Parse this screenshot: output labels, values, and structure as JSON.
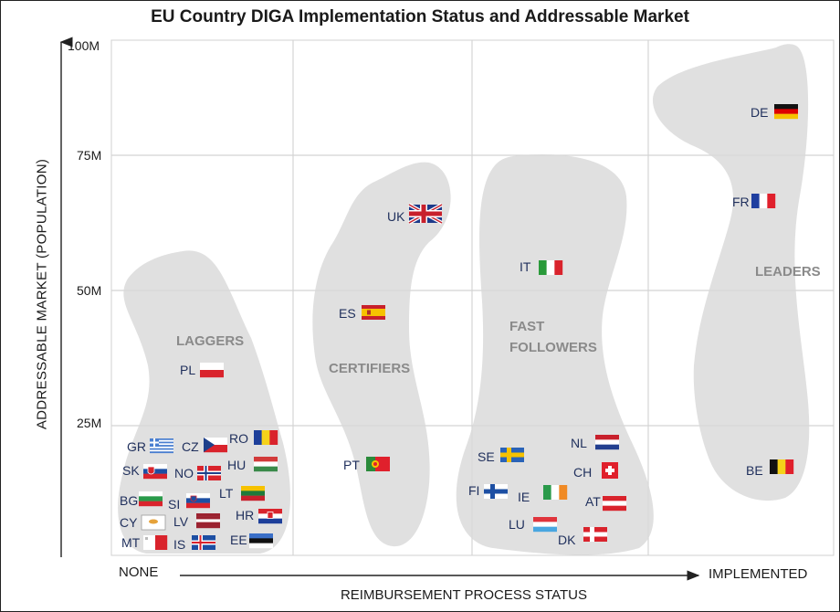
{
  "chart_data": {
    "type": "scatter",
    "title": "EU Country DIGA Implementation Status and Addressable Market",
    "xlabel": "REIMBURSEMENT PROCESS STATUS",
    "ylabel": "ADDRESSABLE MARKET (POPULATION)",
    "x_axis_start_label": "NONE",
    "x_axis_end_label": "IMPLEMENTED",
    "y_ticks": [
      "25M",
      "50M",
      "75M",
      "100M"
    ],
    "ylim": [
      0,
      100
    ],
    "y_unit": "M",
    "grid": true,
    "groups": [
      {
        "name": "LAGGERS",
        "label": "LAGGERS"
      },
      {
        "name": "CERTIFIERS",
        "label": "CERTIFIERS"
      },
      {
        "name": "FAST FOLLOWERS",
        "label": "FAST\nFOLLOWERS"
      },
      {
        "name": "LEADERS",
        "label": "LEADERS"
      }
    ],
    "points": [
      {
        "code": "DE",
        "group": "LEADERS",
        "x": 4.8,
        "y": 83,
        "flag": "germany"
      },
      {
        "code": "FR",
        "group": "LEADERS",
        "x": 4.6,
        "y": 67,
        "flag": "france"
      },
      {
        "code": "BE",
        "group": "LEADERS",
        "x": 4.7,
        "y": 11.5,
        "flag": "belgium"
      },
      {
        "code": "IT",
        "group": "FAST FOLLOWERS",
        "x": 3.4,
        "y": 60,
        "flag": "italy"
      },
      {
        "code": "NL",
        "group": "FAST FOLLOWERS",
        "x": 3.75,
        "y": 17.5,
        "flag": "netherlands"
      },
      {
        "code": "SE",
        "group": "FAST FOLLOWERS",
        "x": 3.1,
        "y": 10.5,
        "flag": "sweden"
      },
      {
        "code": "CH",
        "group": "FAST FOLLOWERS",
        "x": 3.7,
        "y": 9,
        "flag": "switzerland"
      },
      {
        "code": "FI",
        "group": "FAST FOLLOWERS",
        "x": 3.05,
        "y": 5.5,
        "flag": "finland"
      },
      {
        "code": "IE",
        "group": "FAST FOLLOWERS",
        "x": 3.3,
        "y": 5,
        "flag": "ireland"
      },
      {
        "code": "AT",
        "group": "FAST FOLLOWERS",
        "x": 3.75,
        "y": 9,
        "flag": "austria"
      },
      {
        "code": "LU",
        "group": "FAST FOLLOWERS",
        "x": 3.3,
        "y": 0.6,
        "flag": "luxembourg"
      },
      {
        "code": "DK",
        "group": "FAST FOLLOWERS",
        "x": 3.55,
        "y": 6,
        "flag": "denmark"
      },
      {
        "code": "UK",
        "group": "CERTIFIERS",
        "x": 2.3,
        "y": 67,
        "flag": "uk"
      },
      {
        "code": "ES",
        "group": "CERTIFIERS",
        "x": 2.1,
        "y": 47,
        "flag": "spain"
      },
      {
        "code": "PT",
        "group": "CERTIFIERS",
        "x": 2.05,
        "y": 10,
        "flag": "portugal"
      },
      {
        "code": "PL",
        "group": "LAGGERS",
        "x": 1.3,
        "y": 38,
        "flag": "poland"
      },
      {
        "code": "GR",
        "group": "LAGGERS",
        "x": 0.85,
        "y": 10.5,
        "flag": "greece"
      },
      {
        "code": "CZ",
        "group": "LAGGERS",
        "x": 1.15,
        "y": 10.5,
        "flag": "czechia"
      },
      {
        "code": "RO",
        "group": "LAGGERS",
        "x": 1.5,
        "y": 19,
        "flag": "romania"
      },
      {
        "code": "SK",
        "group": "LAGGERS",
        "x": 0.75,
        "y": 5.5,
        "flag": "slovakia"
      },
      {
        "code": "NO",
        "group": "LAGGERS",
        "x": 1.05,
        "y": 5.5,
        "flag": "norway"
      },
      {
        "code": "HU",
        "group": "LAGGERS",
        "x": 1.5,
        "y": 9.7,
        "flag": "hungary"
      },
      {
        "code": "BG",
        "group": "LAGGERS",
        "x": 0.7,
        "y": 6.5,
        "flag": "bulgaria"
      },
      {
        "code": "SI",
        "group": "LAGGERS",
        "x": 1.1,
        "y": 2.1,
        "flag": "slovenia"
      },
      {
        "code": "LT",
        "group": "LAGGERS",
        "x": 1.4,
        "y": 2.8,
        "flag": "lithuania"
      },
      {
        "code": "HR",
        "group": "LAGGERS",
        "x": 1.55,
        "y": 3.9,
        "flag": "croatia"
      },
      {
        "code": "CY",
        "group": "LAGGERS",
        "x": 0.75,
        "y": 1.2,
        "flag": "cyprus"
      },
      {
        "code": "LV",
        "group": "LAGGERS",
        "x": 1.1,
        "y": 1.9,
        "flag": "latvia"
      },
      {
        "code": "EE",
        "group": "LAGGERS",
        "x": 1.5,
        "y": 1.3,
        "flag": "estonia"
      },
      {
        "code": "MT",
        "group": "LAGGERS",
        "x": 0.7,
        "y": 0.5,
        "flag": "malta"
      },
      {
        "code": "IS",
        "group": "LAGGERS",
        "x": 1.05,
        "y": 0.4,
        "flag": "iceland"
      }
    ]
  }
}
